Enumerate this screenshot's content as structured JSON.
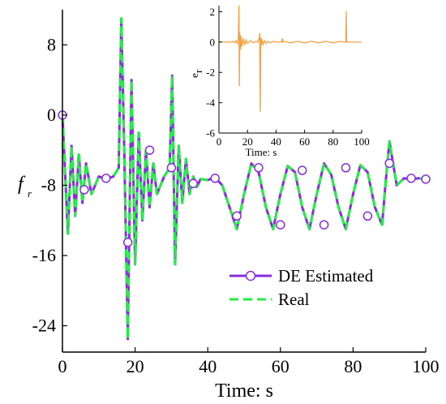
{
  "colors": {
    "estimated": "#8a2be2",
    "real": "#22ee44",
    "error": "#f5a142",
    "marker_stroke": "#8a2be2",
    "axis": "#000000"
  },
  "chart_data": [
    {
      "type": "line",
      "title": "",
      "xlabel": "Time: s",
      "ylabel": "f_r",
      "ylabel_main": "f",
      "ylabel_sub": "r",
      "xlim": [
        0,
        100
      ],
      "ylim": [
        -27,
        12
      ],
      "xticks": [
        0,
        20,
        40,
        60,
        80,
        100
      ],
      "yticks": [
        8,
        0,
        -8,
        -16,
        -24
      ],
      "grid": false,
      "legend_position": "bottom-right",
      "series": [
        {
          "name": "DE Estimated",
          "style": "solid-circle-markers",
          "x": [
            0,
            1.5,
            2.5,
            3.5,
            4.5,
            5.5,
            6.5,
            8,
            10,
            12,
            14,
            15.5,
            16.2,
            17,
            18,
            19,
            20,
            21,
            22,
            23,
            24,
            25,
            26,
            28,
            29.5,
            30.2,
            31,
            32,
            33,
            34,
            35,
            36,
            37,
            38,
            40,
            42,
            44,
            46,
            48,
            50,
            52,
            54,
            56,
            58,
            60,
            62,
            64,
            66,
            68,
            70,
            72,
            74,
            76,
            78,
            80,
            82,
            84,
            86,
            88,
            89,
            90,
            92,
            94,
            96,
            98,
            100
          ],
          "y": [
            0,
            -13.5,
            -3.5,
            -11.5,
            -4.5,
            -10,
            -5.5,
            -9,
            -7,
            -7.3,
            -7,
            -6,
            11,
            -4,
            -25.5,
            4,
            -17,
            -2,
            -12,
            -4,
            -10.5,
            -5.5,
            -9,
            -7,
            -6,
            4.5,
            -17,
            -3.5,
            -10,
            -5,
            -9,
            -7,
            -8.2,
            -7.3,
            -7.4,
            -7.1,
            -8,
            -10.5,
            -13,
            -9,
            -5.5,
            -6.5,
            -10.5,
            -13,
            -9,
            -5.8,
            -6.5,
            -10.5,
            -13,
            -9,
            -5.5,
            -6.8,
            -10.5,
            -13,
            -9,
            -5.7,
            -6.5,
            -10.5,
            -12.5,
            -7.5,
            -3,
            -8,
            -7.2,
            -7.3,
            -7.2,
            -7.3
          ]
        },
        {
          "name": "Real",
          "style": "dashed",
          "x": [
            0,
            1.5,
            2.5,
            3.5,
            4.5,
            5.5,
            6.5,
            8,
            10,
            12,
            14,
            15.5,
            16.2,
            17,
            18,
            19,
            20,
            21,
            22,
            23,
            24,
            25,
            26,
            28,
            29.5,
            30.2,
            31,
            32,
            33,
            34,
            35,
            36,
            37,
            38,
            40,
            42,
            44,
            46,
            48,
            50,
            52,
            54,
            56,
            58,
            60,
            62,
            64,
            66,
            68,
            70,
            72,
            74,
            76,
            78,
            80,
            82,
            84,
            86,
            88,
            89,
            90,
            92,
            94,
            96,
            98,
            100
          ],
          "y": [
            0,
            -13.5,
            -3.5,
            -11.5,
            -4.5,
            -10,
            -5.5,
            -9,
            -7,
            -7.3,
            -7,
            -6,
            11,
            -4,
            -25.5,
            4,
            -17,
            -2,
            -12,
            -4,
            -10.5,
            -5.5,
            -9,
            -7,
            -6,
            4.5,
            -17,
            -3.5,
            -10,
            -5,
            -9,
            -7,
            -8.2,
            -7.3,
            -7.4,
            -7.1,
            -8,
            -10.5,
            -13,
            -9,
            -5.5,
            -6.5,
            -10.5,
            -13,
            -9,
            -5.8,
            -6.5,
            -10.5,
            -13,
            -9,
            -5.5,
            -6.8,
            -10.5,
            -13,
            -9,
            -5.7,
            -6.5,
            -10.5,
            -12.5,
            -7.5,
            -3,
            -8,
            -7.2,
            -7.3,
            -7.2,
            -7.3
          ]
        }
      ],
      "markers": {
        "series": "DE Estimated",
        "x": [
          0,
          6,
          12,
          18,
          24,
          30,
          36,
          42,
          48,
          54,
          60,
          66,
          72,
          78,
          84,
          90,
          96,
          100
        ],
        "y": [
          0,
          -8.5,
          -7.2,
          -14.5,
          -4,
          -6,
          -7.8,
          -7.2,
          -11.5,
          -6,
          -12.5,
          -6.3,
          -12.5,
          -6,
          -11.5,
          -5.5,
          -7.2,
          -7.3
        ]
      }
    },
    {
      "type": "line",
      "title": "",
      "xlabel": "Time: s",
      "ylabel": "e_r",
      "ylabel_main": "e",
      "ylabel_sub": "r",
      "xlim": [
        0,
        100
      ],
      "ylim": [
        -6,
        2.4
      ],
      "xticks": [
        0,
        20,
        40,
        60,
        80,
        100
      ],
      "yticks": [
        2,
        0,
        -2,
        -4,
        -6
      ],
      "grid": false,
      "series": [
        {
          "name": "",
          "x": [
            0,
            8,
            10,
            11,
            12,
            13,
            13.5,
            14,
            14.3,
            14.6,
            15,
            15.5,
            16,
            17,
            18,
            19,
            20,
            22,
            24,
            26,
            27,
            28,
            28.5,
            29,
            29.3,
            29.7,
            30,
            31,
            32,
            33,
            34,
            36,
            38,
            40,
            42,
            44,
            44.3,
            44.6,
            46,
            50,
            55,
            60,
            65,
            70,
            75,
            80,
            85,
            88,
            89,
            89.2,
            89.5,
            90,
            95,
            100
          ],
          "y": [
            0,
            0,
            0.05,
            -0.05,
            0.1,
            -0.1,
            0.2,
            2.4,
            -2.9,
            0.6,
            -0.5,
            0.4,
            -0.3,
            0.25,
            -0.2,
            0.15,
            -0.1,
            0.1,
            -0.05,
            0.05,
            0,
            0.2,
            0.6,
            -4.6,
            0.3,
            -0.2,
            0.2,
            -0.15,
            0.1,
            -0.1,
            0.05,
            -0.05,
            0.05,
            0,
            0,
            0.02,
            0.25,
            0,
            0.05,
            -0.05,
            0.05,
            -0.05,
            0.05,
            -0.05,
            0.05,
            -0.05,
            0.05,
            0,
            0,
            2.05,
            0,
            0,
            0,
            0
          ]
        }
      ]
    }
  ],
  "legend": {
    "estimated_label": "DE Estimated",
    "real_label": "Real"
  }
}
